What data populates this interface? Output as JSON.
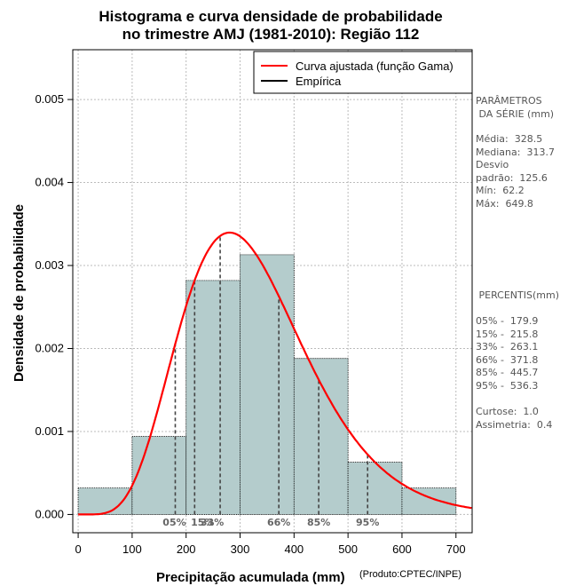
{
  "chart_data": {
    "type": "histogram",
    "title_line1": "Histograma e curva densidade de probabilidade",
    "title_line2": "no trimestre AMJ (1981-2010): Região 112",
    "xlabel": "Precipitação acumulada (mm)",
    "ylabel": "Densidade de probabilidade",
    "credit": "(Produto:CPTEC/INPE)",
    "xlim": [
      -10,
      730
    ],
    "ylim": [
      -0.00022,
      0.0056
    ],
    "x_ticks": [
      0,
      100,
      200,
      300,
      400,
      500,
      600,
      700
    ],
    "x_tick_labels": [
      "0",
      "100",
      "200",
      "300",
      "400",
      "500",
      "600",
      "700"
    ],
    "y_ticks": [
      0.0,
      0.001,
      0.002,
      0.003,
      0.004,
      0.005
    ],
    "y_tick_labels": [
      "0.000",
      "0.001",
      "0.002",
      "0.003",
      "0.004",
      "0.005"
    ],
    "bins": [
      {
        "from": 0,
        "to": 100,
        "density": 0.00032
      },
      {
        "from": 100,
        "to": 200,
        "density": 0.00094
      },
      {
        "from": 200,
        "to": 300,
        "density": 0.00282
      },
      {
        "from": 300,
        "to": 400,
        "density": 0.00313
      },
      {
        "from": 400,
        "to": 500,
        "density": 0.00188
      },
      {
        "from": 500,
        "to": 600,
        "density": 0.00063
      },
      {
        "from": 600,
        "to": 700,
        "density": 0.00032
      }
    ],
    "gamma_fit": {
      "shape": 6.87,
      "scale": 47.8,
      "x_start": 0,
      "x_end": 730
    },
    "percentiles": [
      {
        "label": "05%",
        "x": 179.9
      },
      {
        "label": "15%",
        "x": 215.8
      },
      {
        "label": "33%",
        "x": 263.1
      },
      {
        "label": "66%",
        "x": 371.8
      },
      {
        "label": "85%",
        "x": 445.7
      },
      {
        "label": "95%",
        "x": 536.3
      }
    ],
    "legend": [
      {
        "label": "Curva ajustada (função Gama)",
        "color": "#ff0000"
      },
      {
        "label": "Empírica",
        "color": "#000000"
      }
    ],
    "legend_position": "top-right",
    "grid": true,
    "colors": {
      "bar_fill": "#b4cccc",
      "curve": "#ff0000",
      "grid": "#bbbbbb"
    }
  },
  "side_panel": {
    "params_heading": "PARÂMETROS\n DA SÉRIE (mm)",
    "params_body": "Média:  328.5\nMediana:  313.7\nDesvio\npadrão:  125.6\nMín:  62.2\nMáx:  649.8",
    "percentis_heading": " PERCENTIS(mm)",
    "percentis_body": "05% -  179.9\n15% -  215.8\n33% -  263.1\n66% -  371.8\n85% -  445.7\n95% -  536.3",
    "shape_body": "Curtose:  1.0\nAssimetria:  0.4"
  }
}
